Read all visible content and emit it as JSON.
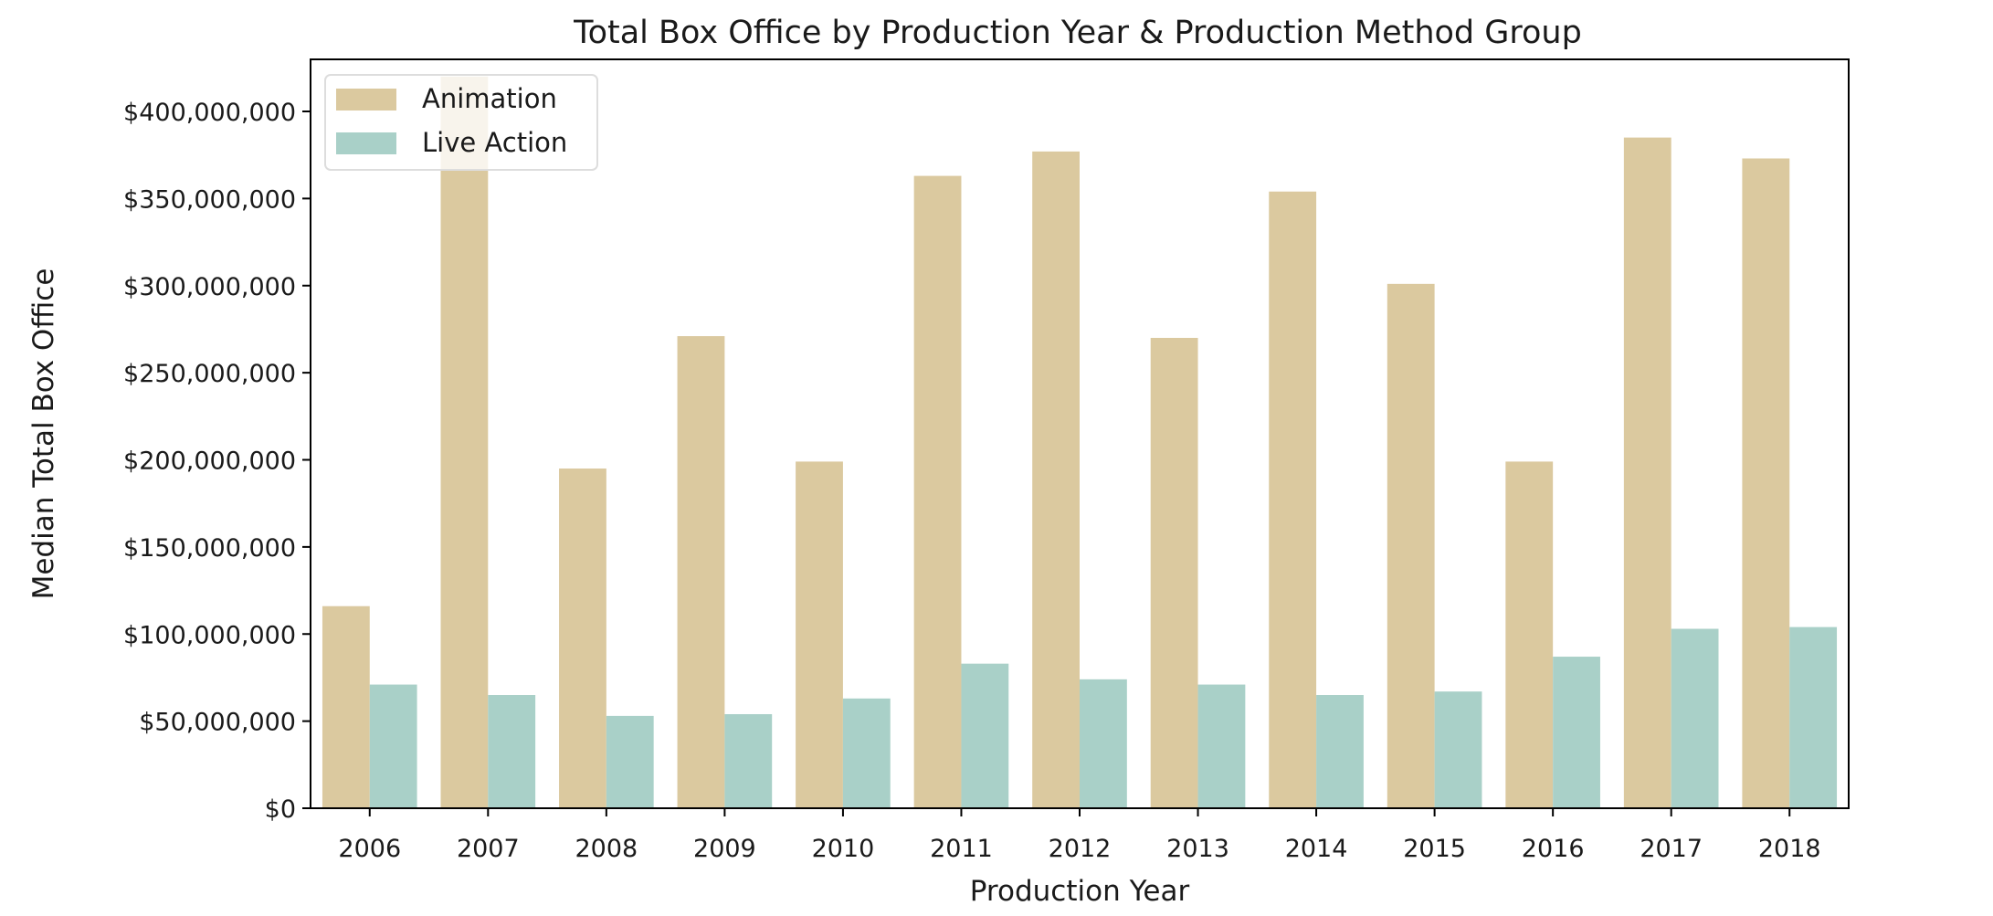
{
  "chart_data": {
    "type": "bar",
    "title": "Total Box Office by Production Year & Production Method Group",
    "xlabel": "Production Year",
    "ylabel": "Median Total Box Office",
    "categories": [
      "2006",
      "2007",
      "2008",
      "2009",
      "2010",
      "2011",
      "2012",
      "2013",
      "2014",
      "2015",
      "2016",
      "2017",
      "2018"
    ],
    "series": [
      {
        "name": "Animation",
        "color": "#dbc99f",
        "values": [
          116000000,
          420000000,
          195000000,
          271000000,
          199000000,
          363000000,
          377000000,
          270000000,
          354000000,
          301000000,
          199000000,
          385000000,
          373000000
        ]
      },
      {
        "name": "Live Action",
        "color": "#a9d0c8",
        "values": [
          71000000,
          65000000,
          53000000,
          54000000,
          63000000,
          83000000,
          74000000,
          71000000,
          65000000,
          67000000,
          87000000,
          103000000,
          104000000
        ]
      }
    ],
    "ylim": [
      0,
      400000000
    ],
    "yticks": [
      0,
      50000000,
      100000000,
      150000000,
      200000000,
      250000000,
      300000000,
      350000000,
      400000000
    ],
    "ytick_labels": [
      "$0",
      "$50,000,000",
      "$100,000,000",
      "$150,000,000",
      "$200,000,000",
      "$250,000,000",
      "$300,000,000",
      "$350,000,000",
      "$400,000,000"
    ],
    "grid": false,
    "legend_position": "top-left"
  }
}
